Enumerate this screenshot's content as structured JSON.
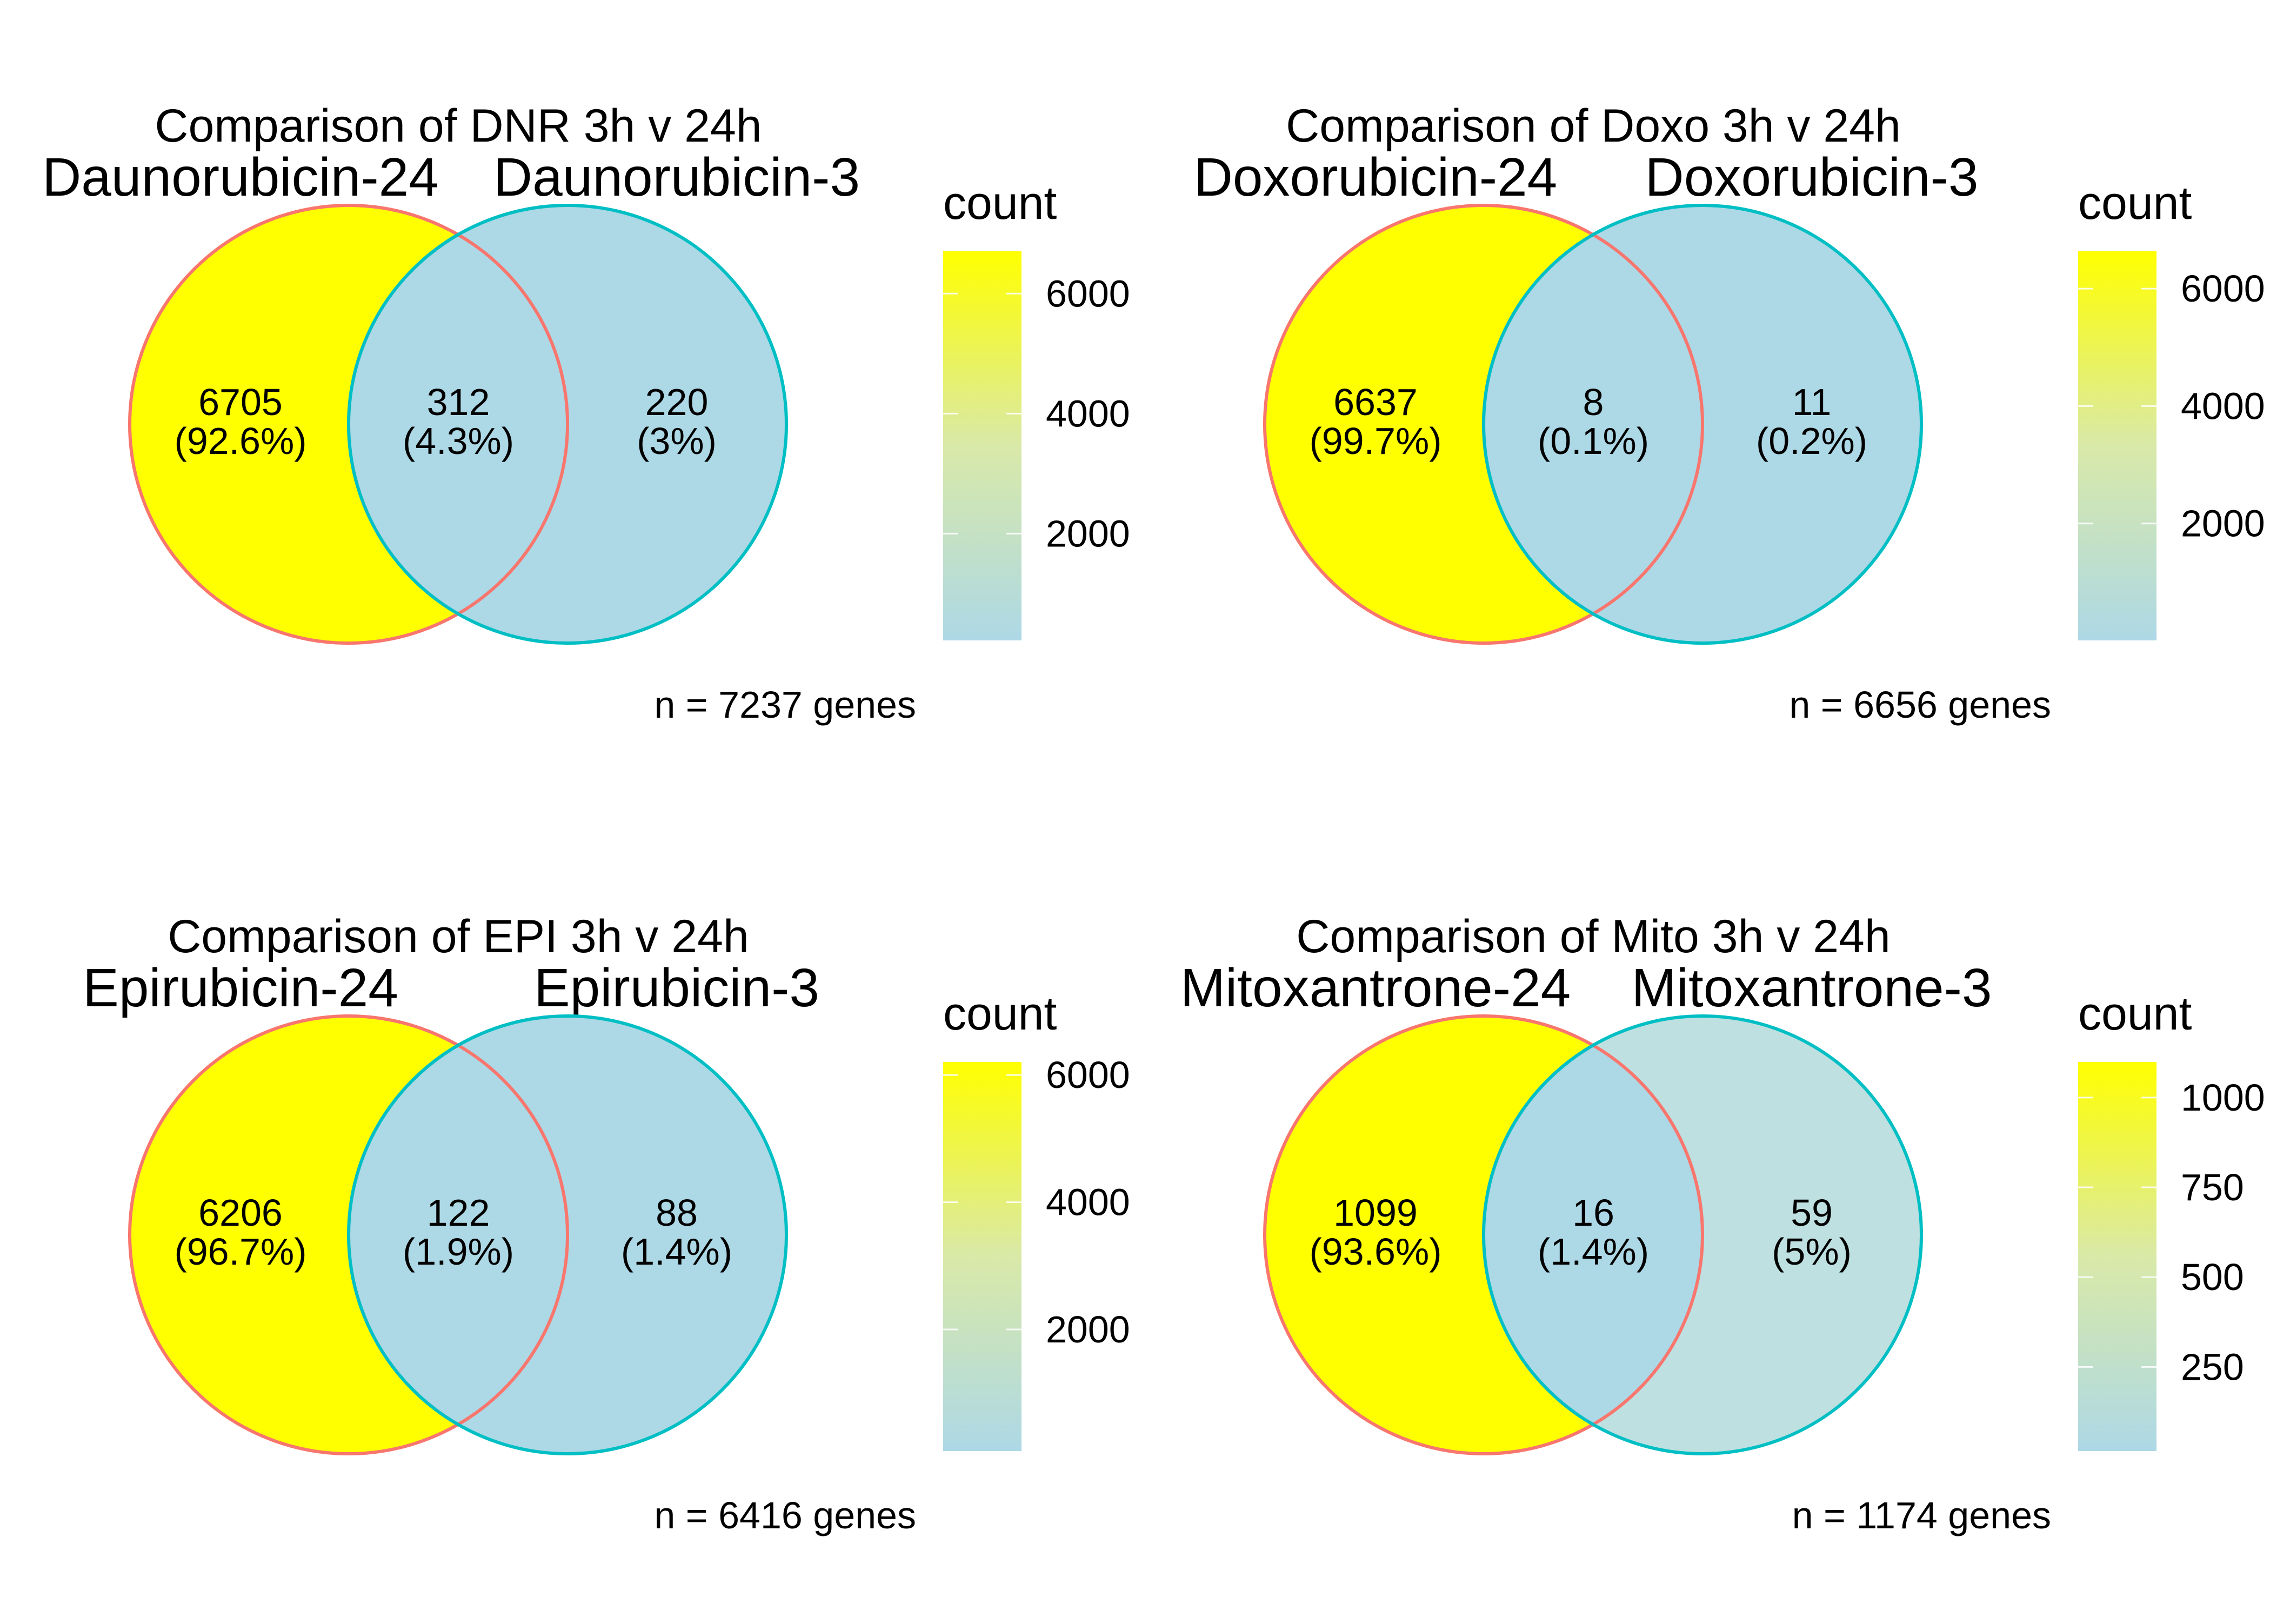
{
  "colors": {
    "left_fill": "#FFFF00",
    "overlap_fill": "#ADD8E6",
    "right_fill": "#ADD8E6",
    "left_stroke": "#F8766D",
    "right_stroke": "#00BFC4",
    "scale_high": "#FFFF00",
    "scale_low": "#ADD8E6"
  },
  "panels": [
    {
      "title": "Comparison of DNR 3h v 24h",
      "set_left": "Daunorubicin-24",
      "set_right": "Daunorubicin-3",
      "regions": [
        {
          "count": "6705",
          "percent": "(92.6%)"
        },
        {
          "count": "312",
          "percent": "(4.3%)"
        },
        {
          "count": "220",
          "percent": "(3%)"
        }
      ],
      "legend": {
        "title": "count",
        "min": 220,
        "max": 6705,
        "ticks": [
          "2000",
          "4000",
          "6000"
        ],
        "tick_values": [
          2000,
          4000,
          6000
        ]
      },
      "caption": "n = 7237 genes"
    },
    {
      "title": "Comparison of Doxo 3h v 24h",
      "set_left": "Doxorubicin-24",
      "set_right": "Doxorubicin-3",
      "regions": [
        {
          "count": "6637",
          "percent": "(99.7%)"
        },
        {
          "count": "8",
          "percent": "(0.1%)"
        },
        {
          "count": "11",
          "percent": "(0.2%)"
        }
      ],
      "legend": {
        "title": "count",
        "min": 8,
        "max": 6637,
        "ticks": [
          "2000",
          "4000",
          "6000"
        ],
        "tick_values": [
          2000,
          4000,
          6000
        ]
      },
      "caption": "n = 6656 genes"
    },
    {
      "title": "Comparison of EPI 3h v 24h",
      "set_left": "Epirubicin-24",
      "set_right": "Epirubicin-3",
      "regions": [
        {
          "count": "6206",
          "percent": "(96.7%)"
        },
        {
          "count": "122",
          "percent": "(1.9%)"
        },
        {
          "count": "88",
          "percent": "(1.4%)"
        }
      ],
      "legend": {
        "title": "count",
        "min": 88,
        "max": 6206,
        "ticks": [
          "2000",
          "4000",
          "6000"
        ],
        "tick_values": [
          2000,
          4000,
          6000
        ]
      },
      "caption": "n = 6416 genes"
    },
    {
      "title": "Comparison of Mito 3h v 24h",
      "set_left": "Mitoxantrone-24",
      "set_right": "Mitoxantrone-3",
      "regions": [
        {
          "count": "1099",
          "percent": "(93.6%)"
        },
        {
          "count": "16",
          "percent": "(1.4%)"
        },
        {
          "count": "59",
          "percent": "(5%)"
        }
      ],
      "legend": {
        "title": "count",
        "min": 16,
        "max": 1099,
        "ticks": [
          "250",
          "500",
          "750",
          "1000"
        ],
        "tick_values": [
          250,
          500,
          750,
          1000
        ]
      },
      "caption": "n = 1174 genes"
    }
  ]
}
